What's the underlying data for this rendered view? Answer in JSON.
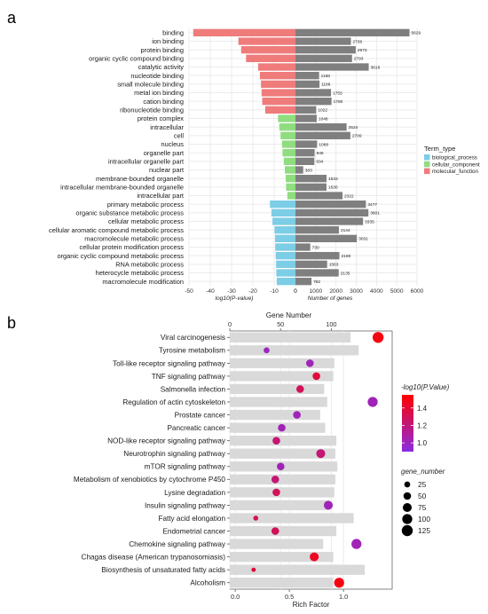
{
  "chart_data": [
    {
      "panel_label": "a",
      "type": "bar",
      "categories": [
        "binding",
        "ion binding",
        "protein binding",
        "organic cyclic compound binding",
        "catalytic activity",
        "nucleotide binding",
        "small molecule binding",
        "metal ion binding",
        "cation binding",
        "ribonucleotide binding",
        "protein complex",
        "intracellular",
        "cell",
        "nucleus",
        "organelle part",
        "intracellular organelle part",
        "nuclear part",
        "membrane-bounded organelle",
        "intracellular membrane-bounded organelle",
        "intracellular part",
        "primary metabolic process",
        "organic substance metabolic process",
        "cellular metabolic process",
        "cellular aromatic compound metabolic process",
        "macromolecule metabolic process",
        "cellular protein modification process",
        "organic cyclic compound metabolic process",
        "RNA metabolic process",
        "heterocycle metabolic process",
        "macromolecule modification"
      ],
      "term_types": [
        "molecular_function",
        "molecular_function",
        "molecular_function",
        "molecular_function",
        "molecular_function",
        "molecular_function",
        "molecular_function",
        "molecular_function",
        "molecular_function",
        "molecular_function",
        "cellular_component",
        "cellular_component",
        "cellular_component",
        "cellular_component",
        "cellular_component",
        "cellular_component",
        "cellular_component",
        "cellular_component",
        "cellular_component",
        "cellular_component",
        "biological_process",
        "biological_process",
        "biological_process",
        "biological_process",
        "biological_process",
        "biological_process",
        "biological_process",
        "biological_process",
        "biological_process",
        "biological_process"
      ],
      "series": [
        {
          "values": [
            -48,
            -26.8,
            -25.5,
            -23.2,
            -17.5,
            -16.7,
            -16.2,
            -15.9,
            -15.6,
            -14.2,
            -8.2,
            -7.6,
            -7.0,
            -6.3,
            -6.1,
            -5.5,
            -5.0,
            -4.6,
            -4.4,
            -3.8,
            -12.0,
            -11.3,
            -10.8,
            -9.8,
            -9.6,
            -9.5,
            -9.3,
            -9.1,
            -9.0,
            -8.8
          ]
        },
        {
          "values": [
            5629,
            2736,
            2973,
            2793,
            3616,
            1168,
            1186,
            1755,
            1780,
            1022,
            1048,
            2524,
            2709,
            1068,
            946,
            934,
            383,
            1533,
            1530,
            2322,
            3477,
            3601,
            3335,
            2144,
            3031,
            730,
            2169,
            1563,
            2135,
            792
          ]
        }
      ],
      "bar_labels": [
        "5629",
        "2736",
        "2973",
        "2793",
        "3616",
        "1168",
        "1186",
        "1755",
        "1780",
        "1022",
        "1048",
        "2524",
        "2709",
        "1068",
        "946",
        "934",
        "383",
        "1533",
        "1530",
        "2322",
        "3477",
        "3601",
        "3335",
        "2144",
        "3031",
        "730",
        "2169",
        "1563",
        "2135",
        "792"
      ],
      "xlabel_left": "log10(P-value)",
      "xlabel_right": "Number of genes",
      "xlim_left": [
        -50,
        0
      ],
      "xlim_right": [
        0,
        6000
      ],
      "ticks_left": [
        "-50",
        "-40",
        "-30",
        "-20",
        "-10",
        "0"
      ],
      "ticks_right": [
        "0",
        "1000",
        "2000",
        "3000",
        "4000",
        "5000",
        "6000"
      ],
      "legend": {
        "title": "Term_type",
        "placement": "right",
        "entries": [
          {
            "label": "biological_process",
            "key": "biological_process",
            "color": "#7ccde6"
          },
          {
            "label": "cellular_component",
            "key": "cellular_component",
            "color": "#90dd80"
          },
          {
            "label": "molecular_function",
            "key": "molecular_function",
            "color": "#ef7b7b"
          }
        ]
      },
      "colors": {
        "biological_process": "#7ccde6",
        "cellular_component": "#90dd80",
        "molecular_function": "#ef7b7b",
        "genes_bar": "#7f7f7f",
        "gridline": "#ebebeb"
      }
    },
    {
      "panel_label": "b",
      "type": "scatter",
      "categories": [
        "Viral carcinogenesis",
        "Tyrosine metabolism",
        "Toll-like receptor signaling pathway",
        "TNF signaling pathway",
        "Salmonella infection",
        "Regulation of actin cytoskeleton",
        "Prostate cancer",
        "Pancreatic cancer",
        "NOD-like receptor signaling pathway",
        "Neurotrophin signaling pathway",
        "mTOR signaling pathway",
        "Metabolism of xenobiotics by cytochrome P450",
        "Lysine degradation",
        "Insulin signaling pathway",
        "Fatty acid elongation",
        "Endometrial cancer",
        "Chemokine signaling pathway",
        "Chagas disease (American trypanosomiasis)",
        "Biosynthesis of unsaturated fatty acids",
        "Alcoholism"
      ],
      "gene_number": [
        119,
        127,
        103,
        102,
        93,
        96,
        89,
        94,
        105,
        104,
        106,
        104,
        103,
        98,
        122,
        105,
        92,
        102,
        133,
        102
      ],
      "rich_factor": [
        1.32,
        0.29,
        0.69,
        0.75,
        0.6,
        1.27,
        0.57,
        0.43,
        0.38,
        0.79,
        0.42,
        0.37,
        0.38,
        0.86,
        0.19,
        0.37,
        1.12,
        0.73,
        0.17,
        0.96
      ],
      "neg_log10_p": [
        1.5,
        1.0,
        1.02,
        1.38,
        1.3,
        1.02,
        1.02,
        1.02,
        1.22,
        1.22,
        1.02,
        1.22,
        1.3,
        1.02,
        1.3,
        1.3,
        1.02,
        1.45,
        1.38,
        1.5
      ],
      "point_size_gene_number": [
        125,
        25,
        50,
        50,
        50,
        100,
        50,
        50,
        50,
        75,
        50,
        50,
        50,
        75,
        15,
        50,
        100,
        75,
        10,
        100
      ],
      "x_top_label": "Gene Number",
      "x_top_ticks": [
        "0",
        "50",
        "100"
      ],
      "x_top_lim": [
        0,
        160
      ],
      "x_bottom_label": "Rich Factor",
      "x_bottom_ticks": [
        "0.0",
        "0.5",
        "1.0"
      ],
      "x_bottom_lim": [
        -0.05,
        1.45
      ],
      "color_legend": {
        "title": "-log10(P.Value)",
        "ticks": [
          "1.4",
          "1.2",
          "1.0"
        ],
        "range": [
          0.9,
          1.55
        ],
        "low_color": "#8a2be2",
        "high_color": "#ff0000"
      },
      "size_legend": {
        "title": "gene_number",
        "labels": [
          "25",
          "50",
          "75",
          "100",
          "125"
        ],
        "values": [
          25,
          50,
          75,
          100,
          125
        ]
      },
      "colors": {
        "bar": "#d9d9d9",
        "gridline": "#ebebeb"
      }
    }
  ]
}
